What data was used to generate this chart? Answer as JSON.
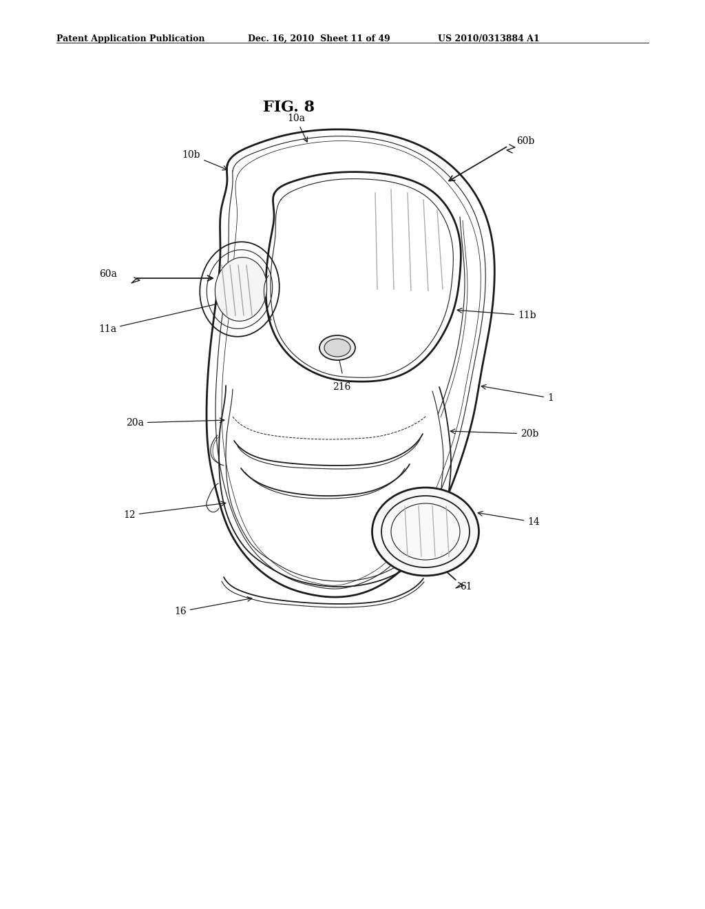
{
  "bg_color": "#ffffff",
  "header_left": "Patent Application Publication",
  "header_mid": "Dec. 16, 2010  Sheet 11 of 49",
  "header_right": "US 2010/0313884 A1",
  "fig_label": "FIG. 8",
  "line_color": "#1a1a1a",
  "lw_thick": 2.0,
  "lw_med": 1.3,
  "lw_thin": 0.8,
  "label_fontsize": 10,
  "header_fontsize": 9
}
